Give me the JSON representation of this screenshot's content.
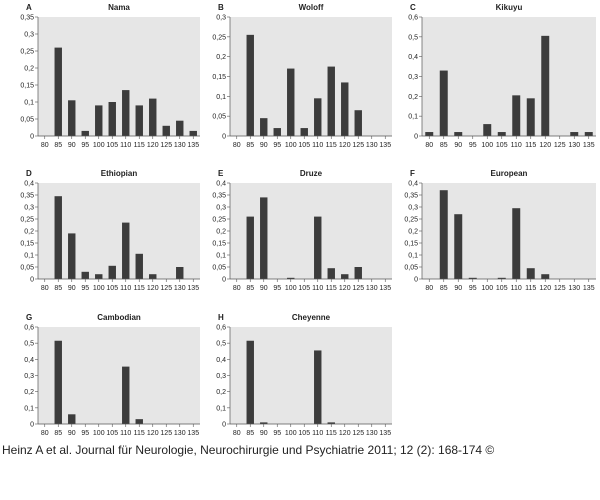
{
  "chart_data": [
    {
      "type": "bar",
      "panel": "A",
      "title": "Nama",
      "xlabel": "",
      "ylabel": "",
      "categories": [
        "80",
        "85",
        "90",
        "95",
        "100",
        "105",
        "110",
        "115",
        "120",
        "125",
        "130",
        "135"
      ],
      "values": [
        0,
        0.26,
        0.105,
        0.015,
        0.09,
        0.1,
        0.135,
        0.09,
        0.11,
        0.03,
        0.045,
        0.015
      ],
      "ylim": [
        0,
        0.35
      ],
      "yticks": [
        "0",
        "0,05",
        "0,1",
        "0,15",
        "0,2",
        "0,25",
        "0,3",
        "0,35"
      ]
    },
    {
      "type": "bar",
      "panel": "B",
      "title": "Woloff",
      "xlabel": "",
      "ylabel": "",
      "categories": [
        "80",
        "85",
        "90",
        "95",
        "100",
        "105",
        "110",
        "115",
        "120",
        "125",
        "130",
        "135"
      ],
      "values": [
        0,
        0.255,
        0.045,
        0.02,
        0.17,
        0.02,
        0.095,
        0.175,
        0.135,
        0.065,
        0,
        0
      ],
      "ylim": [
        0,
        0.3
      ],
      "yticks": [
        "0",
        "0,05",
        "0,1",
        "0,15",
        "0,2",
        "0,25",
        "0,3"
      ]
    },
    {
      "type": "bar",
      "panel": "C",
      "title": "Kikuyu",
      "xlabel": "",
      "ylabel": "",
      "categories": [
        "80",
        "85",
        "90",
        "95",
        "100",
        "105",
        "110",
        "115",
        "120",
        "125",
        "130",
        "135"
      ],
      "values": [
        0.02,
        0.33,
        0.02,
        0,
        0.06,
        0.02,
        0.205,
        0.19,
        0.505,
        0,
        0.02,
        0.02
      ],
      "ylim": [
        0,
        0.6
      ],
      "yticks": [
        "0",
        "0,1",
        "0,2",
        "0,3",
        "0,4",
        "0,5",
        "0,6"
      ]
    },
    {
      "type": "bar",
      "panel": "D",
      "title": "Ethiopian",
      "xlabel": "",
      "ylabel": "",
      "categories": [
        "80",
        "85",
        "90",
        "95",
        "100",
        "105",
        "110",
        "115",
        "120",
        "125",
        "130",
        "135"
      ],
      "values": [
        0,
        0.345,
        0.19,
        0.03,
        0.02,
        0.055,
        0.235,
        0.105,
        0.02,
        0,
        0.05,
        0
      ],
      "ylim": [
        0,
        0.4
      ],
      "yticks": [
        "0",
        "0,05",
        "0,1",
        "0,15",
        "0,2",
        "0,25",
        "0,3",
        "0,35",
        "0,4"
      ]
    },
    {
      "type": "bar",
      "panel": "E",
      "title": "Druze",
      "xlabel": "",
      "ylabel": "",
      "categories": [
        "80",
        "85",
        "90",
        "95",
        "100",
        "105",
        "110",
        "115",
        "120",
        "125",
        "130",
        "135"
      ],
      "values": [
        0,
        0.26,
        0.34,
        0,
        0.005,
        0,
        0.26,
        0.045,
        0.02,
        0.05,
        0,
        0
      ],
      "ylim": [
        0,
        0.4
      ],
      "yticks": [
        "0",
        "0,05",
        "0,1",
        "0,15",
        "0,2",
        "0,25",
        "0,3",
        "0,35",
        "0,4"
      ]
    },
    {
      "type": "bar",
      "panel": "F",
      "title": "European",
      "xlabel": "",
      "ylabel": "",
      "categories": [
        "80",
        "85",
        "90",
        "95",
        "100",
        "105",
        "110",
        "115",
        "120",
        "125",
        "130",
        "135"
      ],
      "values": [
        0,
        0.37,
        0.27,
        0.005,
        0,
        0.005,
        0.295,
        0.045,
        0.02,
        0,
        0,
        0
      ],
      "ylim": [
        0,
        0.4
      ],
      "yticks": [
        "0",
        "0,05",
        "0,1",
        "0,15",
        "0,2",
        "0,25",
        "0,3",
        "0,35",
        "0,4"
      ]
    },
    {
      "type": "bar",
      "panel": "G",
      "title": "Cambodian",
      "xlabel": "",
      "ylabel": "",
      "categories": [
        "80",
        "85",
        "90",
        "95",
        "100",
        "105",
        "110",
        "115",
        "120",
        "125",
        "130",
        "135"
      ],
      "values": [
        0,
        0.515,
        0.06,
        0,
        0,
        0,
        0.355,
        0.03,
        0,
        0,
        0,
        0
      ],
      "ylim": [
        0,
        0.6
      ],
      "yticks": [
        "0",
        "0,1",
        "0,2",
        "0,3",
        "0,4",
        "0,5",
        "0,6"
      ]
    },
    {
      "type": "bar",
      "panel": "H",
      "title": "Cheyenne",
      "xlabel": "",
      "ylabel": "",
      "categories": [
        "80",
        "85",
        "90",
        "95",
        "100",
        "105",
        "110",
        "115",
        "120",
        "125",
        "130",
        "135"
      ],
      "values": [
        0,
        0.515,
        0.01,
        0,
        0,
        0,
        0.455,
        0.01,
        0,
        0,
        0,
        0
      ],
      "ylim": [
        0,
        0.6
      ],
      "yticks": [
        "0",
        "0,1",
        "0,2",
        "0,3",
        "0,4",
        "0,5",
        "0,6"
      ]
    }
  ],
  "style": {
    "plot_bg": "#e6e6e6",
    "bar_color": "#3c3c3c",
    "axis_color": "#555555"
  },
  "citation": "Heinz A et al. Journal für Neurologie, Neurochirurgie und Psychiatrie 2011; 12 (2): 168-174 ©"
}
